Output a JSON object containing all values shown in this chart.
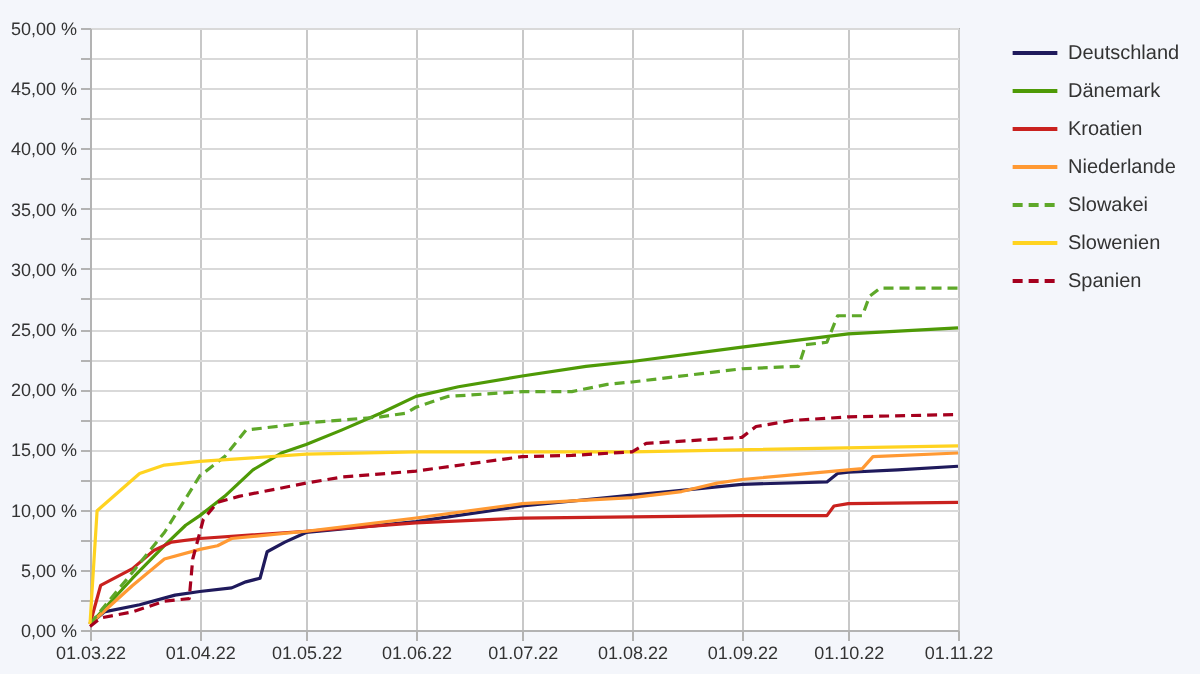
{
  "chart_data": {
    "type": "line",
    "legend": "right",
    "grid": true,
    "xlim": [
      "2022-03-01",
      "2022-11-01"
    ],
    "xticks": [
      {
        "value": "2022-03-01",
        "label": "01.03.22"
      },
      {
        "value": "2022-04-01",
        "label": "01.04.22"
      },
      {
        "value": "2022-05-01",
        "label": "01.05.22"
      },
      {
        "value": "2022-06-01",
        "label": "01.06.22"
      },
      {
        "value": "2022-07-01",
        "label": "01.07.22"
      },
      {
        "value": "2022-08-01",
        "label": "01.08.22"
      },
      {
        "value": "2022-09-01",
        "label": "01.09.22"
      },
      {
        "value": "2022-10-01",
        "label": "01.10.22"
      },
      {
        "value": "2022-11-01",
        "label": "01.11.22"
      }
    ],
    "ylim": [
      0,
      50
    ],
    "yticks": [
      {
        "value": 0,
        "label": "0,00 %"
      },
      {
        "value": 2.5,
        "label": null
      },
      {
        "value": 5,
        "label": "5,00 %"
      },
      {
        "value": 7.5,
        "label": null
      },
      {
        "value": 10,
        "label": "10,00 %"
      },
      {
        "value": 12.5,
        "label": null
      },
      {
        "value": 15,
        "label": "15,00 %"
      },
      {
        "value": 17.5,
        "label": null
      },
      {
        "value": 20,
        "label": "20,00 %"
      },
      {
        "value": 22.5,
        "label": null
      },
      {
        "value": 25,
        "label": "25,00 %"
      },
      {
        "value": 27.5,
        "label": null
      },
      {
        "value": 30,
        "label": "30,00 %"
      },
      {
        "value": 32.5,
        "label": null
      },
      {
        "value": 35,
        "label": "35,00 %"
      },
      {
        "value": 37.5,
        "label": null
      },
      {
        "value": 40,
        "label": "40,00 %"
      },
      {
        "value": 42.5,
        "label": null
      },
      {
        "value": 45,
        "label": "45,00 %"
      },
      {
        "value": 47.5,
        "label": null
      },
      {
        "value": 50,
        "label": "50,00 %"
      }
    ],
    "series": [
      {
        "name": "Deutschland",
        "color": "#1f1a5c",
        "line_style": "solid",
        "x": [
          "2022-03-01",
          "2022-03-05",
          "2022-03-15",
          "2022-03-25",
          "2022-04-01",
          "2022-04-10",
          "2022-04-14",
          "2022-04-18",
          "2022-04-20",
          "2022-04-25",
          "2022-05-01",
          "2022-05-15",
          "2022-06-01",
          "2022-07-01",
          "2022-08-01",
          "2022-08-15",
          "2022-09-01",
          "2022-09-25",
          "2022-09-28",
          "2022-10-01",
          "2022-10-15",
          "2022-11-01"
        ],
        "values": [
          0.5,
          1.5,
          2.1,
          2.9,
          3.2,
          3.5,
          4.0,
          4.3,
          6.5,
          7.3,
          8.1,
          8.5,
          9.0,
          10.3,
          11.2,
          11.6,
          12.1,
          12.3,
          13.0,
          13.1,
          13.3,
          13.6
        ]
      },
      {
        "name": "Dänemark",
        "color": "#4e9a06",
        "line_style": "solid",
        "x": [
          "2022-03-01",
          "2022-03-13",
          "2022-03-22",
          "2022-03-28",
          "2022-04-01",
          "2022-04-08",
          "2022-04-12",
          "2022-04-16",
          "2022-04-24",
          "2022-05-01",
          "2022-05-11",
          "2022-05-22",
          "2022-06-01",
          "2022-06-13",
          "2022-07-01",
          "2022-07-19",
          "2022-08-01",
          "2022-09-01",
          "2022-10-01",
          "2022-11-01"
        ],
        "values": [
          0.5,
          4.3,
          7.0,
          8.7,
          9.5,
          11.1,
          12.2,
          13.3,
          14.7,
          15.4,
          16.6,
          18.0,
          19.4,
          20.2,
          21.1,
          21.9,
          22.3,
          23.5,
          24.6,
          25.1
        ]
      },
      {
        "name": "Kroatien",
        "color": "#c9211e",
        "line_style": "solid",
        "x": [
          "2022-03-01",
          "2022-03-04",
          "2022-03-13",
          "2022-03-19",
          "2022-03-24",
          "2022-04-01",
          "2022-05-01",
          "2022-06-01",
          "2022-07-01",
          "2022-08-01",
          "2022-09-01",
          "2022-09-25",
          "2022-09-27",
          "2022-10-01",
          "2022-11-01"
        ],
        "values": [
          0.5,
          3.7,
          5.1,
          6.6,
          7.3,
          7.6,
          8.2,
          8.9,
          9.3,
          9.4,
          9.5,
          9.5,
          10.3,
          10.5,
          10.6
        ]
      },
      {
        "name": "Niederlande",
        "color": "#ff9933",
        "line_style": "solid",
        "x": [
          "2022-03-01",
          "2022-03-13",
          "2022-03-22",
          "2022-04-01",
          "2022-04-06",
          "2022-04-10",
          "2022-05-01",
          "2022-06-01",
          "2022-07-01",
          "2022-08-01",
          "2022-08-15",
          "2022-08-25",
          "2022-09-01",
          "2022-10-01",
          "2022-10-05",
          "2022-10-08",
          "2022-11-01"
        ],
        "values": [
          0.5,
          3.7,
          5.9,
          6.7,
          7.0,
          7.6,
          8.2,
          9.3,
          10.5,
          11.0,
          11.5,
          12.2,
          12.5,
          13.3,
          13.4,
          14.4,
          14.7
        ]
      },
      {
        "name": "Slowakei",
        "color": "#5ea829",
        "line_style": "dashed",
        "x": [
          "2022-03-01",
          "2022-03-13",
          "2022-03-22",
          "2022-04-01",
          "2022-04-08",
          "2022-04-14",
          "2022-05-01",
          "2022-05-22",
          "2022-05-29",
          "2022-06-01",
          "2022-06-10",
          "2022-07-01",
          "2022-07-15",
          "2022-07-25",
          "2022-08-01",
          "2022-09-01",
          "2022-09-17",
          "2022-09-19",
          "2022-09-25",
          "2022-09-28",
          "2022-10-05",
          "2022-10-07",
          "2022-10-10",
          "2022-11-01"
        ],
        "values": [
          0.5,
          4.8,
          8.1,
          12.8,
          14.4,
          16.6,
          17.2,
          17.7,
          18.0,
          18.5,
          19.4,
          19.8,
          19.8,
          20.4,
          20.6,
          21.7,
          21.9,
          23.7,
          23.9,
          26.1,
          26.1,
          27.7,
          28.4,
          28.4
        ]
      },
      {
        "name": "Slowenien",
        "color": "#ffd320",
        "line_style": "solid",
        "x": [
          "2022-03-01",
          "2022-03-03",
          "2022-03-15",
          "2022-03-22",
          "2022-04-01",
          "2022-05-01",
          "2022-06-01",
          "2022-07-01",
          "2022-08-01",
          "2022-11-01"
        ],
        "values": [
          0.5,
          9.9,
          13.0,
          13.7,
          14.0,
          14.6,
          14.8,
          14.8,
          14.8,
          15.3
        ]
      },
      {
        "name": "Spanien",
        "color": "#a5001e",
        "line_style": "dashed",
        "x": [
          "2022-03-01",
          "2022-03-04",
          "2022-03-13",
          "2022-03-22",
          "2022-03-29",
          "2022-03-30",
          "2022-04-02",
          "2022-04-06",
          "2022-04-12",
          "2022-05-01",
          "2022-05-11",
          "2022-06-01",
          "2022-07-01",
          "2022-07-15",
          "2022-08-01",
          "2022-08-05",
          "2022-09-01",
          "2022-09-05",
          "2022-09-15",
          "2022-10-01",
          "2022-11-01"
        ],
        "values": [
          0.3,
          1.0,
          1.5,
          2.4,
          2.6,
          5.9,
          9.2,
          10.6,
          11.1,
          12.2,
          12.7,
          13.2,
          14.4,
          14.5,
          14.8,
          15.5,
          16.0,
          16.9,
          17.4,
          17.7,
          17.9
        ]
      }
    ]
  }
}
